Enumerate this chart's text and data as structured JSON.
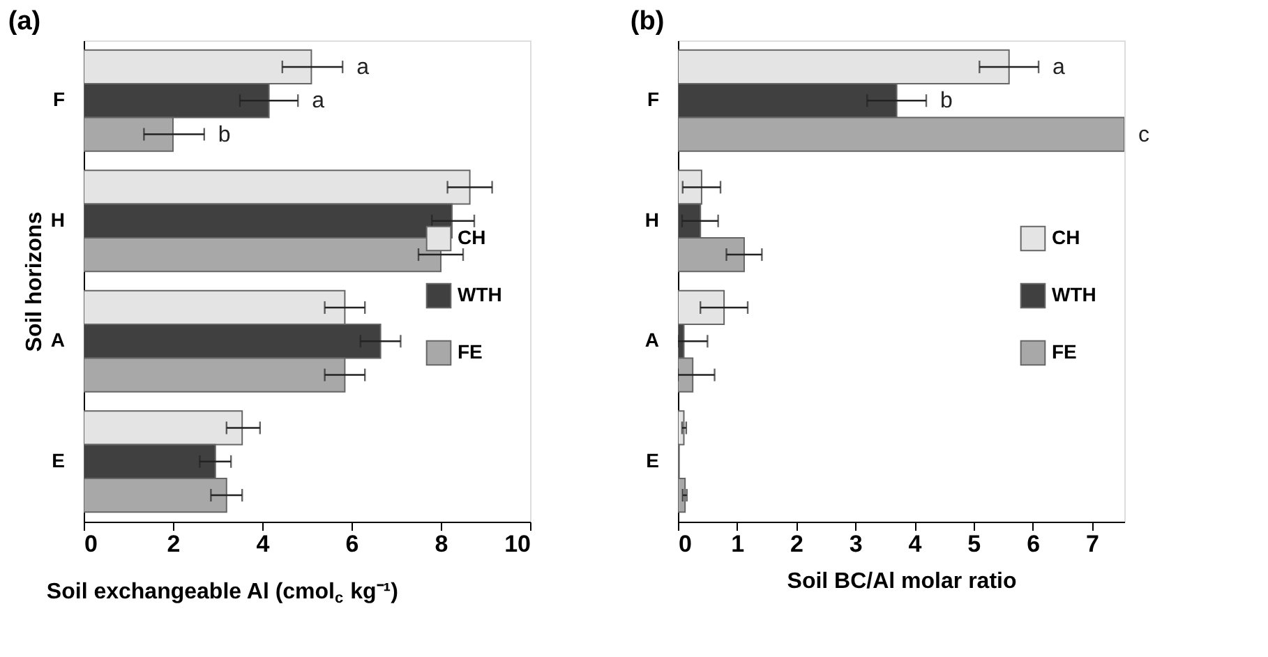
{
  "chart_data": [
    {
      "type": "bar",
      "orientation": "horizontal",
      "title": "(a)",
      "xlabel": "Soil exchangeable Al (cmol$_{c}$ kg⁻¹)",
      "ylabel": "Soil horizons",
      "categories": [
        "F",
        "H",
        "A",
        "E"
      ],
      "xlim": [
        0,
        10
      ],
      "xticks": [
        0,
        2,
        4,
        6,
        8,
        10
      ],
      "grid": false,
      "legend": "right",
      "series": [
        {
          "name": "CH",
          "color": "#e4e4e4",
          "values": [
            5.1,
            8.65,
            5.85,
            3.55
          ],
          "errors": [
            [
              4.45,
              5.8
            ],
            [
              8.15,
              9.15
            ],
            [
              5.4,
              6.3
            ],
            [
              3.2,
              3.95
            ]
          ]
        },
        {
          "name": "WTH",
          "color": "#404040",
          "values": [
            4.15,
            8.25,
            6.65,
            2.95
          ],
          "errors": [
            [
              3.5,
              4.8
            ],
            [
              7.8,
              8.75
            ],
            [
              6.2,
              7.1
            ],
            [
              2.6,
              3.3
            ]
          ]
        },
        {
          "name": "FE",
          "color": "#a8a8a8",
          "values": [
            2.0,
            8.0,
            5.85,
            3.2
          ],
          "errors": [
            [
              1.35,
              2.7
            ],
            [
              7.5,
              8.5
            ],
            [
              5.4,
              6.3
            ],
            [
              2.85,
              3.55
            ]
          ]
        }
      ],
      "annotations": [
        "a",
        "a",
        "b"
      ]
    },
    {
      "type": "bar",
      "orientation": "horizontal",
      "title": "(b)",
      "xlabel": "Soil BC/Al molar ratio",
      "categories": [
        "F",
        "H",
        "A",
        "E"
      ],
      "xlim": [
        0,
        7.55
      ],
      "xticks": [
        0,
        1,
        2,
        3,
        4,
        5,
        6,
        7
      ],
      "grid": false,
      "legend": "right",
      "series": [
        {
          "name": "CH",
          "color": "#e4e4e4",
          "values": [
            5.6,
            0.4,
            0.78,
            0.1
          ],
          "errors": [
            [
              5.1,
              6.1
            ],
            [
              0.08,
              0.72
            ],
            [
              0.38,
              1.18
            ],
            [
              0.07,
              0.14
            ]
          ]
        },
        {
          "name": "WTH",
          "color": "#404040",
          "values": [
            3.7,
            0.38,
            0.1,
            0.02
          ],
          "errors": [
            [
              3.2,
              4.2
            ],
            [
              0.07,
              0.68
            ],
            [
              0,
              0.5
            ],
            null
          ]
        },
        {
          "name": "FE",
          "color": "#a8a8a8",
          "values": [
            7.55,
            1.12,
            0.25,
            0.12
          ],
          "errors": [
            null,
            [
              0.82,
              1.42
            ],
            [
              0,
              0.62
            ],
            [
              0.08,
              0.15
            ]
          ]
        }
      ],
      "annotations": [
        "a",
        "b",
        "c"
      ]
    }
  ]
}
